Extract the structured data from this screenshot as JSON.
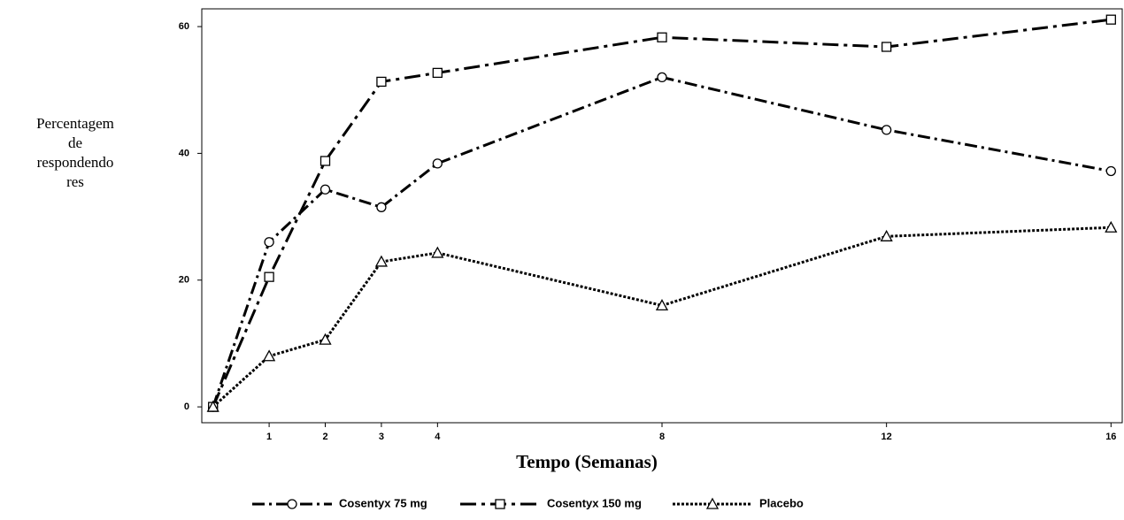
{
  "chart_data": {
    "type": "line",
    "y_label_lines": [
      "Percentagem",
      "de",
      "respondendo",
      "res"
    ],
    "x_label": "Tempo (Semanas)",
    "x": [
      0,
      1,
      2,
      3,
      4,
      8,
      12,
      16
    ],
    "xlim": [
      -0.2,
      16.2
    ],
    "xticks": [
      1,
      2,
      3,
      4,
      8,
      12,
      16
    ],
    "ylim": [
      -2.5,
      62.8
    ],
    "yticks": [
      0,
      20,
      40,
      60
    ],
    "legend": "bottom",
    "series": [
      {
        "name": "Cosentyx 75 mg",
        "color": "#000000",
        "marker": "circle",
        "dash": "dashdot",
        "values": [
          0,
          26,
          34.3,
          31.5,
          38.4,
          52,
          43.7,
          37.2
        ]
      },
      {
        "name": "Cosentyx 150 mg",
        "color": "#000000",
        "marker": "square",
        "dash": "longdashdot",
        "values": [
          0,
          20.5,
          38.8,
          51.3,
          52.7,
          58.3,
          56.8,
          61.1
        ]
      },
      {
        "name": "Placebo",
        "color": "#000000",
        "marker": "triangle",
        "dash": "dotted",
        "values": [
          0,
          8,
          10.6,
          22.9,
          24.3,
          16,
          26.9,
          28.3
        ]
      }
    ]
  }
}
